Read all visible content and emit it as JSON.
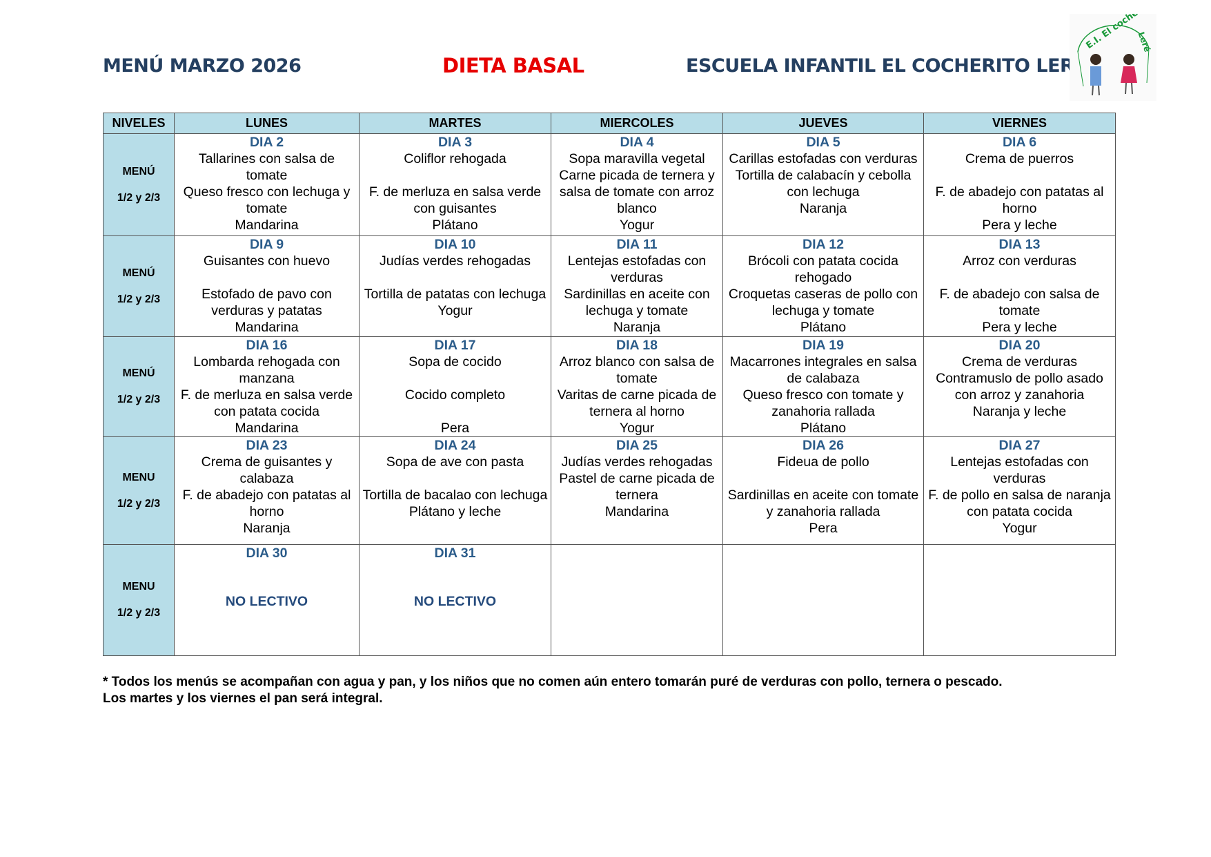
{
  "header": {
    "title": "MENÚ MARZO 2026",
    "diet": "DIETA BASAL",
    "school": "ESCUELA INFANTIL EL COCHERITO LERÉ",
    "logo_text": "E.I. El cocherito Leré"
  },
  "colors": {
    "header_fill": "#b7dde8",
    "title": "#243f60",
    "diet": "#e60000",
    "day": "#2b5c8a"
  },
  "table": {
    "columns": [
      "NIVELES",
      "LUNES",
      "MARTES",
      "MIERCOLES",
      "JUEVES",
      "VIERNES"
    ],
    "rows": [
      {
        "level": [
          "MENÚ",
          "1/2 y 2/3"
        ],
        "cells": [
          {
            "day": "DIA 2",
            "lines": [
              "Tallarines con salsa de tomate",
              "Queso fresco con lechuga y tomate",
              "Mandarina"
            ]
          },
          {
            "day": "DIA 3",
            "lines": [
              "Coliflor rehogada",
              "",
              "F. de merluza en salsa verde con guisantes",
              "Plátano"
            ]
          },
          {
            "day": "DIA 4",
            "lines": [
              "Sopa maravilla vegetal",
              "Carne picada de ternera y salsa de tomate con arroz blanco",
              "Yogur"
            ]
          },
          {
            "day": "DIA 5",
            "lines": [
              "Carillas estofadas con verduras",
              "Tortilla de calabacín y cebolla con lechuga",
              "Naranja"
            ]
          },
          {
            "day": "DIA 6",
            "lines": [
              "Crema de puerros",
              "",
              "F. de abadejo con patatas al horno",
              "Pera y leche"
            ]
          }
        ]
      },
      {
        "level": [
          "MENÚ",
          "1/2 y 2/3"
        ],
        "cells": [
          {
            "day": "DIA 9",
            "lines": [
              "Guisantes con huevo",
              "",
              "Estofado de pavo con verduras y patatas",
              "Mandarina"
            ]
          },
          {
            "day": "DIA 10",
            "lines": [
              "Judías verdes rehogadas",
              "",
              "Tortilla de patatas con lechuga",
              "Yogur"
            ]
          },
          {
            "day": "DIA 11",
            "lines": [
              "Lentejas estofadas con verduras",
              "Sardinillas en aceite con lechuga y tomate",
              "Naranja"
            ]
          },
          {
            "day": "DIA 12",
            "lines": [
              "Brócoli con patata cocida rehogado",
              "Croquetas caseras de pollo con lechuga y tomate",
              "Plátano"
            ]
          },
          {
            "day": "DIA 13",
            "lines": [
              "Arroz con verduras",
              "",
              "F. de abadejo con salsa de tomate",
              "Pera y leche"
            ]
          }
        ]
      },
      {
        "level": [
          "MENÚ",
          "1/2 y 2/3"
        ],
        "cells": [
          {
            "day": "DIA 16",
            "lines": [
              "Lombarda rehogada con manzana",
              "F. de merluza en salsa verde con patata cocida",
              "Mandarina"
            ]
          },
          {
            "day": "DIA 17",
            "lines": [
              "Sopa de cocido",
              "",
              "Cocido completo",
              "",
              "Pera"
            ]
          },
          {
            "day": "DIA 18",
            "lines": [
              "Arroz blanco con salsa de tomate",
              "Varitas de carne picada de ternera al horno",
              "Yogur"
            ]
          },
          {
            "day": "DIA 19",
            "lines": [
              "Macarrones integrales en salsa de calabaza",
              "Queso fresco con tomate y zanahoria rallada",
              "Plátano"
            ]
          },
          {
            "day": "DIA 20",
            "lines": [
              "Crema de verduras",
              "Contramuslo de pollo asado con arroz y zanahoria",
              "Naranja y leche"
            ]
          }
        ]
      },
      {
        "level": [
          "MENU",
          "1/2 y 2/3"
        ],
        "cells": [
          {
            "day": "DIA 23",
            "lines": [
              "Crema de guisantes y calabaza",
              "F. de abadejo con patatas al horno",
              "Naranja"
            ]
          },
          {
            "day": "DIA 24",
            "lines": [
              "Sopa de ave con pasta",
              "",
              "Tortilla de bacalao con lechuga",
              "Plátano y leche"
            ]
          },
          {
            "day": "DIA 25",
            "lines": [
              "Judías verdes rehogadas",
              "Pastel de carne picada de ternera",
              "Mandarina"
            ]
          },
          {
            "day": "DIA 26",
            "lines": [
              "Fideua de pollo",
              "",
              "Sardinillas en aceite con tomate y zanahoria rallada",
              "Pera"
            ]
          },
          {
            "day": "DIA 27",
            "lines": [
              "Lentejas estofadas con verduras",
              "F. de pollo en salsa de naranja con patata cocida",
              "Yogur"
            ]
          }
        ]
      },
      {
        "level": [
          "MENU",
          "1/2 y 2/3"
        ],
        "cells": [
          {
            "day": "DIA 30",
            "note": "NO LECTIVO"
          },
          {
            "day": "DIA 31",
            "note": "NO LECTIVO"
          },
          {},
          {},
          {}
        ]
      }
    ]
  },
  "footnote": [
    "* Todos los menús se acompañan con agua y pan, y los niños que no comen aún entero tomarán puré de verduras con pollo, ternera o pescado.",
    "Los martes y los viernes el pan será integral."
  ]
}
